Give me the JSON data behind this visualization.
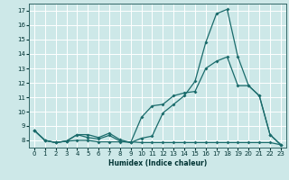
{
  "xlabel": "Humidex (Indice chaleur)",
  "bg_color": "#cde8e8",
  "grid_color": "#ffffff",
  "line_color": "#1a6b6b",
  "xlim": [
    -0.5,
    23.5
  ],
  "ylim": [
    7.5,
    17.5
  ],
  "yticks": [
    8,
    9,
    10,
    11,
    12,
    13,
    14,
    15,
    16,
    17
  ],
  "xticks": [
    0,
    1,
    2,
    3,
    4,
    5,
    6,
    7,
    8,
    9,
    10,
    11,
    12,
    13,
    14,
    15,
    16,
    17,
    18,
    19,
    20,
    21,
    22,
    23
  ],
  "line1_x": [
    0,
    1,
    2,
    3,
    4,
    5,
    6,
    7,
    8,
    9,
    10,
    11,
    12,
    13,
    14,
    15,
    16,
    17,
    18,
    19,
    20,
    21,
    22,
    23
  ],
  "line1_y": [
    8.7,
    8.0,
    7.85,
    7.95,
    8.4,
    8.2,
    8.1,
    8.35,
    7.95,
    7.85,
    8.15,
    8.3,
    9.9,
    10.5,
    11.1,
    12.1,
    14.8,
    16.8,
    17.1,
    13.8,
    11.8,
    11.1,
    8.4,
    7.7
  ],
  "line2_x": [
    0,
    1,
    2,
    3,
    4,
    5,
    6,
    7,
    8,
    9,
    10,
    11,
    12,
    13,
    14,
    15,
    16,
    17,
    18,
    19,
    20,
    21,
    22,
    23
  ],
  "line2_y": [
    8.7,
    8.0,
    7.85,
    7.95,
    8.4,
    8.4,
    8.2,
    8.5,
    8.05,
    7.85,
    9.6,
    10.4,
    10.5,
    11.1,
    11.3,
    11.4,
    13.0,
    13.5,
    13.8,
    11.8,
    11.8,
    11.1,
    8.4,
    7.7
  ],
  "line3_x": [
    0,
    1,
    2,
    3,
    4,
    5,
    6,
    7,
    8,
    9,
    10,
    11,
    12,
    13,
    14,
    15,
    16,
    17,
    18,
    19,
    20,
    21,
    22,
    23
  ],
  "line3_y": [
    8.7,
    8.0,
    7.85,
    7.95,
    8.0,
    8.0,
    7.9,
    7.9,
    7.9,
    7.9,
    7.85,
    7.85,
    7.85,
    7.85,
    7.85,
    7.85,
    7.85,
    7.85,
    7.85,
    7.85,
    7.85,
    7.85,
    7.85,
    7.7
  ],
  "xlabel_fontsize": 5.5,
  "tick_fontsize": 5.0
}
